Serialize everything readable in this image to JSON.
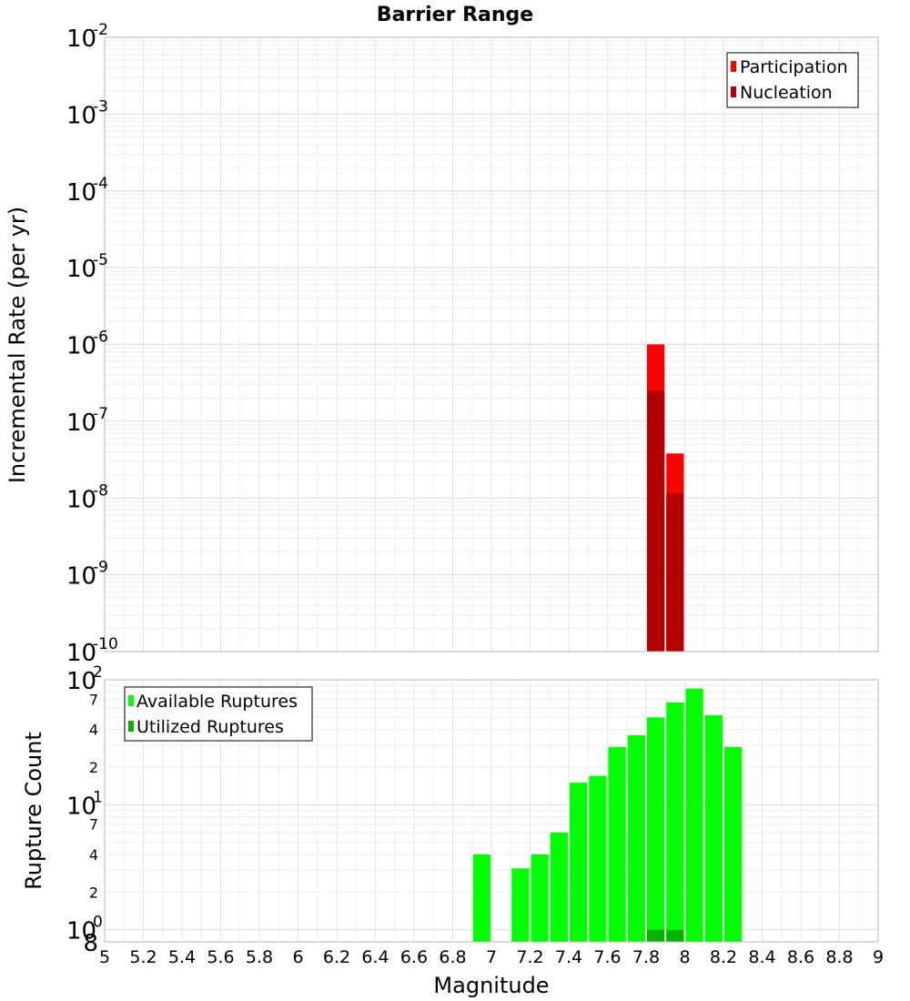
{
  "chart_data": [
    {
      "type": "bar",
      "title": "Barrier Range",
      "ylabel": "Incremental Rate (per yr)",
      "y_scale": "log",
      "ylim": [
        1e-10,
        0.01
      ],
      "y_ticks": [
        {
          "base": "10",
          "exp": "-10",
          "value": 1e-10
        },
        {
          "base": "10",
          "exp": "-9",
          "value": 1e-09
        },
        {
          "base": "10",
          "exp": "-8",
          "value": 1e-08
        },
        {
          "base": "10",
          "exp": "-7",
          "value": 1e-07
        },
        {
          "base": "10",
          "exp": "-6",
          "value": 1e-06
        },
        {
          "base": "10",
          "exp": "-5",
          "value": 1e-05
        },
        {
          "base": "10",
          "exp": "-4",
          "value": 0.0001
        },
        {
          "base": "10",
          "exp": "-3",
          "value": 0.001
        },
        {
          "base": "10",
          "exp": "-2",
          "value": 0.01
        }
      ],
      "bar_width": 0.1,
      "grid": true,
      "legend_position": "top-right",
      "series": [
        {
          "name": "Participation",
          "color": "#ff0000",
          "x": [
            7.85,
            7.95
          ],
          "values": [
            1e-06,
            3.8e-08
          ]
        },
        {
          "name": "Nucleation",
          "color": "#b40000",
          "x": [
            7.85,
            7.95
          ],
          "values": [
            2.5e-07,
            1.15e-08
          ]
        }
      ]
    },
    {
      "type": "bar",
      "ylabel": "Rupture Count",
      "xlabel": "Magnitude",
      "y_scale": "log",
      "ylim": [
        0.8,
        100
      ],
      "xlim": [
        5,
        9
      ],
      "x_ticks": [
        "5",
        "5.2",
        "5.4",
        "5.6",
        "5.8",
        "6",
        "6.2",
        "6.4",
        "6.6",
        "6.8",
        "7",
        "7.2",
        "7.4",
        "7.6",
        "7.8",
        "8",
        "8.2",
        "8.4",
        "8.6",
        "8.8",
        "9"
      ],
      "y_major_ticks": [
        {
          "base": "10",
          "exp": "0",
          "value": 1
        },
        {
          "base": "10",
          "exp": "1",
          "value": 10
        },
        {
          "base": "10",
          "exp": "2",
          "value": 100
        }
      ],
      "y_minor_ticks": [
        {
          "label": "8",
          "value": 0.8
        },
        {
          "label": "2",
          "value": 2
        },
        {
          "label": "4",
          "value": 4
        },
        {
          "label": "7",
          "value": 7
        },
        {
          "label": "2",
          "value": 20
        },
        {
          "label": "4",
          "value": 40
        },
        {
          "label": "7",
          "value": 70
        }
      ],
      "bar_width": 0.1,
      "grid": true,
      "legend_position": "top-left",
      "series": [
        {
          "name": "Available Ruptures",
          "color": "#00ff00",
          "x": [
            6.95,
            7.15,
            7.25,
            7.35,
            7.45,
            7.55,
            7.65,
            7.75,
            7.85,
            7.95,
            8.05,
            8.15,
            8.25
          ],
          "values": [
            4,
            3.1,
            4,
            6,
            15,
            17,
            29,
            36,
            50,
            66,
            85,
            52,
            29
          ]
        },
        {
          "name": "Utilized Ruptures",
          "color": "#00b400",
          "x": [
            7.85,
            7.95
          ],
          "values": [
            1,
            1
          ]
        }
      ]
    }
  ]
}
